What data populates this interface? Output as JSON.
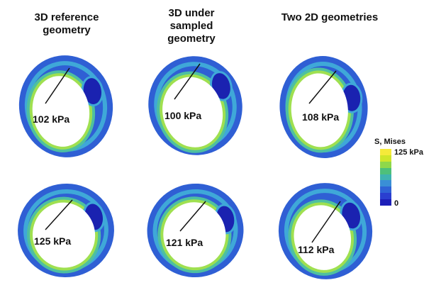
{
  "columns": [
    {
      "title": "3D reference geometry"
    },
    {
      "title": "3D under sampled geometry"
    },
    {
      "title": "Two 2D geometries"
    }
  ],
  "panels": [
    {
      "label": "102 kPa"
    },
    {
      "label": "100 kPa"
    },
    {
      "label": "108 kPa"
    },
    {
      "label": "125 kPa"
    },
    {
      "label": "121 kPa"
    },
    {
      "label": "112 kPa"
    }
  ],
  "legend": {
    "title": "S, Mises",
    "max_label": "125 kPa",
    "min_label": "0",
    "colors": [
      "#f5ea3a",
      "#cfe62a",
      "#8fd84a",
      "#4ec07a",
      "#3fb3b0",
      "#3a8fd6",
      "#2f63d6",
      "#2a3fd0",
      "#1d1fb8"
    ]
  },
  "colors": {
    "outer_band": "#2f5fd4",
    "mid_band": "#3fa8d8",
    "teal_band": "#4ec0a0",
    "green_band": "#9fe050",
    "dark_core": "#1a22b0",
    "lumen": "#ffffff"
  }
}
